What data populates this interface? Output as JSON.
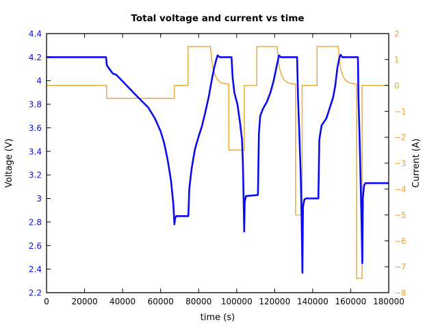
{
  "figure": {
    "title": "Total voltage and current vs time"
  },
  "chart_data": {
    "type": "line",
    "title": "Total voltage and current vs time",
    "xlabel": "time (s)",
    "ylabel_left": "Voltage (V)",
    "ylabel_right": "Current (A)",
    "xlim": [
      0,
      180000
    ],
    "ylim_left": [
      2.2,
      4.4
    ],
    "ylim_right": [
      -8,
      2
    ],
    "grid": false,
    "legend": "none",
    "colors": {
      "voltage": "#0a0af0",
      "current": "#e8a42c",
      "axis": "#000000",
      "left_tick_text": "#0a0af0",
      "right_tick_text": "#e8a42c",
      "background": "#ffffff"
    },
    "x_ticks": {
      "values": [
        0,
        20000,
        40000,
        60000,
        80000,
        100000,
        120000,
        140000,
        160000,
        180000
      ],
      "labels": [
        "0",
        "20000",
        "40000",
        "60000",
        "80000",
        "100000",
        "120000",
        "140000",
        "160000",
        "180000"
      ]
    },
    "y_ticks_left": {
      "values": [
        4.4,
        4.2,
        4.0,
        3.8,
        3.6,
        3.4,
        3.2,
        3.0,
        2.8,
        2.6,
        2.4,
        2.2
      ],
      "labels": [
        "4.4",
        "4.2",
        "4",
        "3.8",
        "3.6",
        "3.4",
        "3.2",
        "3",
        "2.8",
        "2.6",
        "2.4",
        "2.2"
      ]
    },
    "y_ticks_right": {
      "values": [
        2,
        1,
        0,
        -1,
        -2,
        -3,
        -4,
        -5,
        -6,
        -7,
        -8
      ],
      "labels": [
        "2",
        "1",
        "0",
        "−1",
        "−2",
        "−3",
        "−4",
        "−5",
        "−6",
        "−7",
        "−8"
      ]
    },
    "series": [
      {
        "name": "current",
        "axis": "right",
        "color_key": "current",
        "line_width": 1.4,
        "points": [
          [
            0,
            0
          ],
          [
            31600,
            0
          ],
          [
            31600,
            -0.5
          ],
          [
            67300,
            -0.5
          ],
          [
            67300,
            0
          ],
          [
            74500,
            0
          ],
          [
            74500,
            1.5
          ],
          [
            86200,
            1.5
          ],
          [
            86900,
            1.0
          ],
          [
            87700,
            0.62
          ],
          [
            88700,
            0.38
          ],
          [
            90000,
            0.22
          ],
          [
            91500,
            0.12
          ],
          [
            93500,
            0.07
          ],
          [
            95900,
            0.05
          ],
          [
            95900,
            -2.5
          ],
          [
            104000,
            -2.5
          ],
          [
            104000,
            0
          ],
          [
            110600,
            0
          ],
          [
            110600,
            1.5
          ],
          [
            121300,
            1.5
          ],
          [
            121900,
            1.0
          ],
          [
            122700,
            0.62
          ],
          [
            123700,
            0.38
          ],
          [
            124900,
            0.22
          ],
          [
            126500,
            0.12
          ],
          [
            128500,
            0.07
          ],
          [
            131000,
            0.05
          ],
          [
            131000,
            -5.0
          ],
          [
            134450,
            -5.0
          ],
          [
            134450,
            0
          ],
          [
            142300,
            0
          ],
          [
            142300,
            1.5
          ],
          [
            153400,
            1.5
          ],
          [
            154000,
            1.0
          ],
          [
            154800,
            0.62
          ],
          [
            155800,
            0.38
          ],
          [
            157000,
            0.22
          ],
          [
            158700,
            0.12
          ],
          [
            160700,
            0.07
          ],
          [
            163100,
            0.05
          ],
          [
            163100,
            -7.45
          ],
          [
            166000,
            -7.45
          ],
          [
            166000,
            0
          ],
          [
            180000,
            0
          ]
        ]
      },
      {
        "name": "voltage",
        "axis": "left",
        "color_key": "voltage",
        "line_width": 2.6,
        "points": [
          [
            0,
            4.2
          ],
          [
            31300,
            4.2
          ],
          [
            31700,
            4.13
          ],
          [
            33500,
            4.09
          ],
          [
            34900,
            4.06
          ],
          [
            36700,
            4.05
          ],
          [
            40300,
            3.99
          ],
          [
            43900,
            3.93
          ],
          [
            47500,
            3.87
          ],
          [
            53600,
            3.77
          ],
          [
            57000,
            3.68
          ],
          [
            60000,
            3.57
          ],
          [
            61900,
            3.47
          ],
          [
            63700,
            3.33
          ],
          [
            65500,
            3.15
          ],
          [
            66700,
            2.95
          ],
          [
            67300,
            2.78
          ],
          [
            67600,
            2.83
          ],
          [
            68300,
            2.85
          ],
          [
            74600,
            2.85
          ],
          [
            75100,
            3.08
          ],
          [
            75700,
            3.17
          ],
          [
            76400,
            3.26
          ],
          [
            78100,
            3.42
          ],
          [
            79900,
            3.52
          ],
          [
            81700,
            3.61
          ],
          [
            83500,
            3.73
          ],
          [
            85300,
            3.86
          ],
          [
            87100,
            4.02
          ],
          [
            88200,
            4.11
          ],
          [
            89300,
            4.18
          ],
          [
            90000,
            4.215
          ],
          [
            91100,
            4.2
          ],
          [
            97300,
            4.2
          ],
          [
            97900,
            4.03
          ],
          [
            98800,
            3.9
          ],
          [
            100400,
            3.8
          ],
          [
            101800,
            3.64
          ],
          [
            102800,
            3.5
          ],
          [
            103300,
            3.3
          ],
          [
            103600,
            3.05
          ],
          [
            103950,
            2.72
          ],
          [
            104250,
            2.97
          ],
          [
            104900,
            3.02
          ],
          [
            111200,
            3.03
          ],
          [
            111700,
            3.55
          ],
          [
            112400,
            3.7
          ],
          [
            113800,
            3.76
          ],
          [
            115900,
            3.82
          ],
          [
            117800,
            3.9
          ],
          [
            119500,
            4.0
          ],
          [
            120500,
            4.08
          ],
          [
            121300,
            4.14
          ],
          [
            122300,
            4.215
          ],
          [
            123300,
            4.2
          ],
          [
            131800,
            4.2
          ],
          [
            132300,
            3.85
          ],
          [
            133000,
            3.55
          ],
          [
            133700,
            3.2
          ],
          [
            134200,
            2.8
          ],
          [
            134600,
            2.37
          ],
          [
            134900,
            2.93
          ],
          [
            135600,
            2.99
          ],
          [
            136400,
            3.0
          ],
          [
            143000,
            3.0
          ],
          [
            143500,
            3.5
          ],
          [
            144700,
            3.62
          ],
          [
            147200,
            3.68
          ],
          [
            149000,
            3.77
          ],
          [
            150800,
            3.86
          ],
          [
            151900,
            3.96
          ],
          [
            153000,
            4.11
          ],
          [
            154100,
            4.2
          ],
          [
            154700,
            4.22
          ],
          [
            155600,
            4.2
          ],
          [
            163800,
            4.2
          ],
          [
            164100,
            3.85
          ],
          [
            164700,
            3.5
          ],
          [
            165200,
            3.15
          ],
          [
            165700,
            2.8
          ],
          [
            166100,
            2.45
          ],
          [
            166400,
            3.0
          ],
          [
            167000,
            3.11
          ],
          [
            167800,
            3.13
          ],
          [
            180000,
            3.13
          ]
        ]
      }
    ]
  }
}
